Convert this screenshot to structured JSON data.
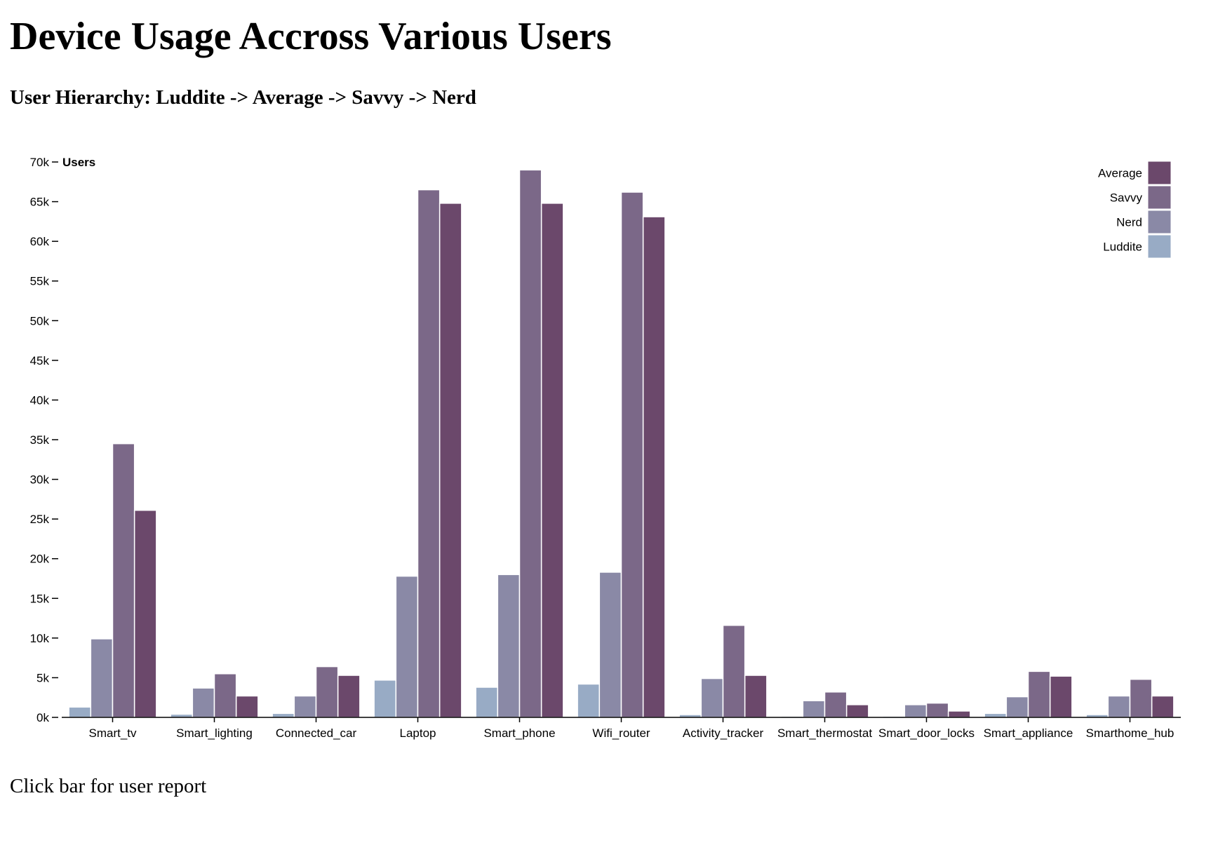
{
  "header": {
    "title": "Device Usage Accross Various Users",
    "subtitle": "User Hierarchy: Luddite -> Average -> Savvy -> Nerd"
  },
  "footer": {
    "note": "Click bar for user report"
  },
  "chart_data": {
    "type": "bar",
    "title": "",
    "xlabel": "",
    "ylabel": "Users",
    "ylim": [
      0,
      70000
    ],
    "yticks": [
      {
        "value": 0,
        "label": "0k"
      },
      {
        "value": 5000,
        "label": "5k"
      },
      {
        "value": 10000,
        "label": "10k"
      },
      {
        "value": 15000,
        "label": "15k"
      },
      {
        "value": 20000,
        "label": "20k"
      },
      {
        "value": 25000,
        "label": "25k"
      },
      {
        "value": 30000,
        "label": "30k"
      },
      {
        "value": 35000,
        "label": "35k"
      },
      {
        "value": 40000,
        "label": "40k"
      },
      {
        "value": 45000,
        "label": "45k"
      },
      {
        "value": 50000,
        "label": "50k"
      },
      {
        "value": 55000,
        "label": "55k"
      },
      {
        "value": 60000,
        "label": "60k"
      },
      {
        "value": 65000,
        "label": "65k"
      },
      {
        "value": 70000,
        "label": "70k"
      }
    ],
    "grid": false,
    "legend_position": "top-right",
    "categories": [
      "Smart_tv",
      "Smart_lighting",
      "Connected_car",
      "Laptop",
      "Smart_phone",
      "Wifi_router",
      "Activity_tracker",
      "Smart_thermostat",
      "Smart_door_locks",
      "Smart_appliance",
      "Smarthome_hub"
    ],
    "series": [
      {
        "name": "Luddite",
        "color": "#98abc5",
        "values": [
          1300,
          400,
          500,
          4700,
          3800,
          4200,
          350,
          150,
          150,
          500,
          350
        ]
      },
      {
        "name": "Nerd",
        "color": "#8a89a6",
        "values": [
          9900,
          3700,
          2700,
          17800,
          18000,
          18300,
          4900,
          2100,
          1600,
          2600,
          2700
        ]
      },
      {
        "name": "Savvy",
        "color": "#7b6888",
        "values": [
          34500,
          5500,
          6400,
          66500,
          69000,
          66200,
          11600,
          3200,
          1800,
          5800,
          4800
        ]
      },
      {
        "name": "Average",
        "color": "#6b486b",
        "values": [
          26100,
          2700,
          5300,
          64800,
          64800,
          63100,
          5300,
          1600,
          800,
          5200,
          2700
        ]
      }
    ],
    "legend_order": [
      "Average",
      "Savvy",
      "Nerd",
      "Luddite"
    ]
  }
}
